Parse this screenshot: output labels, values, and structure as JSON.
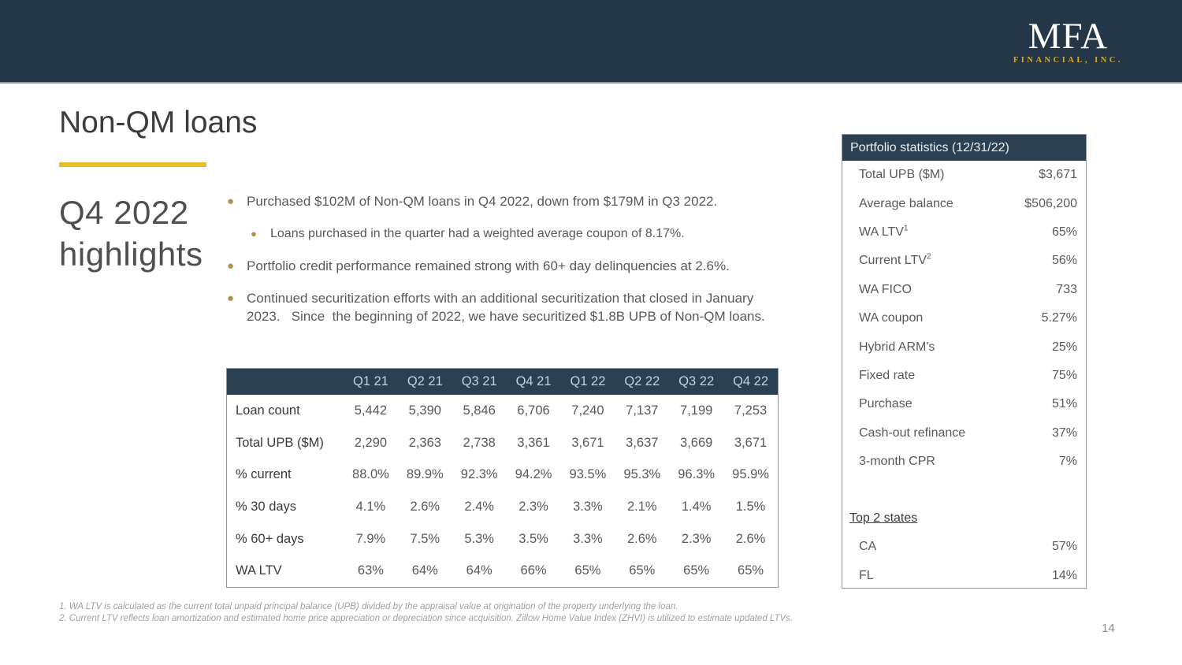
{
  "header": {
    "logo": {
      "mfa": "MFA",
      "subtitle": "FINANCIAL, INC."
    }
  },
  "slide": {
    "title": "Non-QM loans",
    "heading_line1": "Q4 2022",
    "heading_line2": "highlights",
    "page_number": "14"
  },
  "highlights": {
    "bullets": [
      {
        "level": 1,
        "text": "Purchased $102M of Non-QM loans in Q4 2022, down from $179M in Q3 2022."
      },
      {
        "level": 2,
        "text": "Loans purchased in the quarter had a weighted average coupon of 8.17%."
      },
      {
        "level": 1,
        "text": "Portfolio credit performance remained strong with 60+ day delinquencies at 2.6%."
      },
      {
        "level": 1,
        "text": "Continued securitization efforts with an additional securitization that closed in January 2023.   Since  the beginning of 2022, we have securitized $1.8B UPB of Non-QM loans."
      }
    ]
  },
  "quarterly_table": {
    "columns": [
      "Q1 21",
      "Q2 21",
      "Q3 21",
      "Q4 21",
      "Q1 22",
      "Q2 22",
      "Q3 22",
      "Q4 22"
    ],
    "rows": [
      {
        "label": "Loan count",
        "values": [
          "5,442",
          "5,390",
          "5,846",
          "6,706",
          "7,240",
          "7,137",
          "7,199",
          "7,253"
        ]
      },
      {
        "label": "Total UPB ($M)",
        "values": [
          "2,290",
          "2,363",
          "2,738",
          "3,361",
          "3,671",
          "3,637",
          "3,669",
          "3,671"
        ]
      },
      {
        "label": "% current",
        "values": [
          "88.0%",
          "89.9%",
          "92.3%",
          "94.2%",
          "93.5%",
          "95.3%",
          "96.3%",
          "95.9%"
        ]
      },
      {
        "label": "% 30 days",
        "values": [
          "4.1%",
          "2.6%",
          "2.4%",
          "2.3%",
          "3.3%",
          "2.1%",
          "1.4%",
          "1.5%"
        ]
      },
      {
        "label": "% 60+ days",
        "values": [
          "7.9%",
          "7.5%",
          "5.3%",
          "3.5%",
          "3.3%",
          "2.6%",
          "2.3%",
          "2.6%"
        ]
      },
      {
        "label": "WA LTV",
        "values": [
          "63%",
          "64%",
          "64%",
          "66%",
          "65%",
          "65%",
          "65%",
          "65%"
        ]
      }
    ]
  },
  "portfolio_stats": {
    "title": "Portfolio statistics (12/31/22)",
    "rows": [
      {
        "label": "Total UPB ($M)",
        "value": "$3,671"
      },
      {
        "label": "Average balance",
        "value": "$506,200"
      },
      {
        "label": "WA LTV",
        "sup": "1",
        "value": "65%"
      },
      {
        "label": "Current LTV",
        "sup": "2",
        "value": "56%"
      },
      {
        "label": "WA FICO",
        "value": "733"
      },
      {
        "label": "WA coupon",
        "value": "5.27%"
      },
      {
        "label": "Hybrid ARM's",
        "value": "25%"
      },
      {
        "label": "Fixed rate",
        "value": "75%"
      },
      {
        "label": "Purchase",
        "value": "51%"
      },
      {
        "label": "Cash-out refinance",
        "value": "37%"
      },
      {
        "label": "3-month CPR",
        "value": "7%"
      }
    ],
    "section_label": "Top 2 states",
    "states": [
      {
        "label": "CA",
        "value": "57%"
      },
      {
        "label": "FL",
        "value": "14%"
      }
    ]
  },
  "footnotes": [
    "1. WA LTV is calculated as the current total unpaid principal balance (UPB) divided by the appraisal value at origination of the property underlying the loan.",
    "2. Current LTV reflects loan amortization and estimated home price appreciation or depreciation since acquisition. Zillow Home Value Index (ZHVI) is utilized to estimate updated LTVs."
  ],
  "colors": {
    "navy_band": "#243749",
    "table_header_navy": "#2B4152",
    "accent_yellow": "#E7BD2B",
    "bullet_gold": "#B3924F",
    "logo_gold": "#D9A927",
    "body_text_gray": "#595959",
    "label_dark": "#3A3A3A",
    "border_gray": "#8D98A2"
  }
}
